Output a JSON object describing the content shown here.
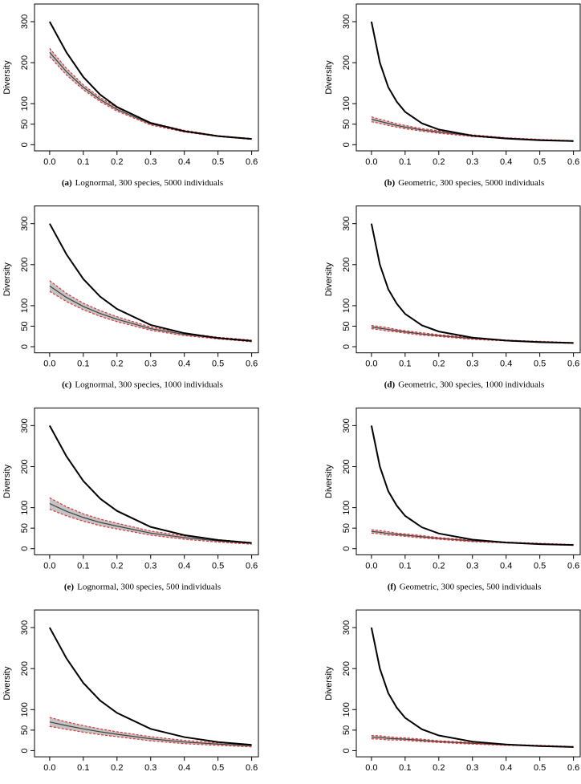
{
  "chart_data": [
    {
      "type": "line",
      "ylabel": "Diversity",
      "caption": {
        "label": "(a)",
        "text": "Lognormal, 300 species, 5000 individuals"
      },
      "x": [
        0,
        0.05,
        0.1,
        0.15,
        0.2,
        0.3,
        0.4,
        0.5,
        0.6
      ],
      "series": [
        {
          "color": "#000000",
          "values": [
            300,
            225,
            165,
            122,
            92,
            53,
            33,
            21,
            14
          ]
        },
        {
          "color": "#e03030",
          "dash": true,
          "values": [
            235,
            186,
            146,
            115,
            90,
            54,
            35,
            22,
            15
          ]
        },
        {
          "color": "#e03030",
          "dash": true,
          "values": [
            215,
            170,
            134,
            105,
            82,
            48,
            31,
            20,
            13
          ]
        },
        {
          "color": "#404040",
          "values": [
            225,
            178,
            140,
            110,
            86,
            51,
            33,
            21,
            14
          ]
        }
      ],
      "xlim": [
        -0.045,
        0.62
      ],
      "ylim": [
        -15,
        343
      ],
      "xticks": [
        {
          "value": 0,
          "label": "0.0"
        },
        0.1,
        0.2,
        0.3,
        0.4,
        0.5,
        0.6
      ],
      "yticks": [
        0,
        50,
        100,
        200,
        300
      ]
    },
    {
      "type": "line",
      "ylabel": "Diversity",
      "caption": {
        "label": "(b)",
        "text": "Geometric, 300 species, 5000 individuals"
      },
      "x": [
        0,
        0.025,
        0.05,
        0.075,
        0.1,
        0.15,
        0.2,
        0.3,
        0.4,
        0.5,
        0.6
      ],
      "series": [
        {
          "color": "#000000",
          "values": [
            300,
            200,
            140,
            105,
            80,
            52,
            37,
            22,
            15,
            11,
            9
          ]
        },
        {
          "color": "#e03030",
          "dash": true,
          "values": [
            68,
            62,
            57,
            51,
            47,
            39,
            34,
            24,
            17,
            13,
            10
          ]
        },
        {
          "color": "#e03030",
          "dash": true,
          "values": [
            56,
            52,
            47,
            43,
            39,
            33,
            28,
            20,
            15,
            11,
            8
          ]
        },
        {
          "color": "#404040",
          "values": [
            62,
            57,
            52,
            47,
            43,
            36,
            31,
            22,
            16,
            12,
            9
          ]
        }
      ],
      "xlim": [
        -0.045,
        0.62
      ],
      "ylim": [
        -15,
        343
      ],
      "xticks": [
        {
          "value": 0,
          "label": "0.0"
        },
        0.1,
        0.2,
        0.3,
        0.4,
        0.5,
        0.6
      ],
      "yticks": [
        0,
        50,
        100,
        200,
        300
      ]
    },
    {
      "type": "line",
      "ylabel": "Diversity",
      "caption": {
        "label": "(c)",
        "text": "Lognormal, 300 species, 1000 individuals"
      },
      "x": [
        0,
        0.05,
        0.1,
        0.15,
        0.2,
        0.3,
        0.4,
        0.5,
        0.6
      ],
      "series": [
        {
          "color": "#000000",
          "values": [
            300,
            225,
            165,
            122,
            92,
            53,
            33,
            21,
            14
          ]
        },
        {
          "color": "#e03030",
          "dash": true,
          "values": [
            161,
            130,
            106,
            88,
            73,
            48,
            33,
            23,
            16
          ]
        },
        {
          "color": "#e03030",
          "dash": true,
          "values": [
            135,
            110,
            90,
            74,
            61,
            40,
            27,
            19,
            12
          ]
        },
        {
          "color": "#404040",
          "values": [
            148,
            120,
            98,
            81,
            67,
            44,
            30,
            21,
            14
          ]
        }
      ],
      "xlim": [
        -0.045,
        0.62
      ],
      "ylim": [
        -15,
        343
      ],
      "xticks": [
        {
          "value": 0,
          "label": "0.0"
        },
        0.1,
        0.2,
        0.3,
        0.4,
        0.5,
        0.6
      ],
      "yticks": [
        0,
        50,
        100,
        200,
        300
      ]
    },
    {
      "type": "line",
      "ylabel": "Diversity",
      "caption": {
        "label": "(d)",
        "text": "Geometric, 300 species, 1000 individuals"
      },
      "x": [
        0,
        0.025,
        0.05,
        0.075,
        0.1,
        0.15,
        0.2,
        0.3,
        0.4,
        0.5,
        0.6
      ],
      "series": [
        {
          "color": "#000000",
          "values": [
            300,
            200,
            140,
            105,
            80,
            52,
            37,
            22,
            15,
            11,
            9
          ]
        },
        {
          "color": "#e03030",
          "dash": true,
          "values": [
            52,
            49,
            46,
            42,
            39,
            34,
            29,
            22,
            16,
            13,
            10
          ]
        },
        {
          "color": "#e03030",
          "dash": true,
          "values": [
            44,
            41,
            38,
            36,
            33,
            28,
            25,
            18,
            14,
            11,
            8
          ]
        },
        {
          "color": "#404040",
          "values": [
            48,
            45,
            42,
            39,
            36,
            31,
            27,
            20,
            15,
            12,
            9
          ]
        }
      ],
      "xlim": [
        -0.045,
        0.62
      ],
      "ylim": [
        -15,
        343
      ],
      "xticks": [
        {
          "value": 0,
          "label": "0.0"
        },
        0.1,
        0.2,
        0.3,
        0.4,
        0.5,
        0.6
      ],
      "yticks": [
        0,
        50,
        100,
        200,
        300
      ]
    },
    {
      "type": "line",
      "ylabel": "Diversity",
      "caption": {
        "label": "(e)",
        "text": "Lognormal, 300 species, 500 individuals"
      },
      "x": [
        0,
        0.05,
        0.1,
        0.15,
        0.2,
        0.3,
        0.4,
        0.5,
        0.6
      ],
      "series": [
        {
          "color": "#000000",
          "values": [
            300,
            225,
            165,
            122,
            92,
            53,
            33,
            21,
            14
          ]
        },
        {
          "color": "#e03030",
          "dash": true,
          "values": [
            124,
            102,
            85,
            72,
            62,
            43,
            31,
            22,
            15
          ]
        },
        {
          "color": "#e03030",
          "dash": true,
          "values": [
            96,
            80,
            67,
            56,
            48,
            33,
            23,
            16,
            11
          ]
        },
        {
          "color": "#404040",
          "values": [
            110,
            91,
            76,
            64,
            55,
            38,
            27,
            19,
            13
          ]
        }
      ],
      "xlim": [
        -0.045,
        0.62
      ],
      "ylim": [
        -15,
        343
      ],
      "xticks": [
        {
          "value": 0,
          "label": "0.0"
        },
        0.1,
        0.2,
        0.3,
        0.4,
        0.5,
        0.6
      ],
      "yticks": [
        0,
        50,
        100,
        200,
        300
      ]
    },
    {
      "type": "line",
      "ylabel": "Diversity",
      "caption": {
        "label": "(f)",
        "text": "Geometric, 300 species, 500 individuals"
      },
      "x": [
        0,
        0.025,
        0.05,
        0.075,
        0.1,
        0.15,
        0.2,
        0.3,
        0.4,
        0.5,
        0.6
      ],
      "series": [
        {
          "color": "#000000",
          "values": [
            300,
            200,
            140,
            105,
            80,
            52,
            37,
            22,
            15,
            11,
            9
          ]
        },
        {
          "color": "#e03030",
          "dash": true,
          "values": [
            46,
            44,
            41,
            38,
            36,
            32,
            27,
            21,
            16,
            13,
            10
          ]
        },
        {
          "color": "#e03030",
          "dash": true,
          "values": [
            38,
            36,
            33,
            32,
            30,
            26,
            23,
            17,
            14,
            11,
            8
          ]
        },
        {
          "color": "#404040",
          "values": [
            42,
            40,
            37,
            35,
            33,
            29,
            25,
            19,
            15,
            12,
            9
          ]
        }
      ],
      "xlim": [
        -0.045,
        0.62
      ],
      "ylim": [
        -15,
        343
      ],
      "xticks": [
        {
          "value": 0,
          "label": "0.0"
        },
        0.1,
        0.2,
        0.3,
        0.4,
        0.5,
        0.6
      ],
      "yticks": [
        0,
        50,
        100,
        200,
        300
      ]
    },
    {
      "type": "line",
      "ylabel": "Diversity",
      "x": [
        0,
        0.05,
        0.1,
        0.15,
        0.2,
        0.3,
        0.4,
        0.5,
        0.6
      ],
      "series": [
        {
          "color": "#000000",
          "values": [
            300,
            225,
            165,
            122,
            92,
            53,
            33,
            21,
            14
          ]
        },
        {
          "color": "#e03030",
          "dash": true,
          "values": [
            81,
            70,
            61,
            53,
            46,
            34,
            25,
            19,
            15
          ]
        },
        {
          "color": "#e03030",
          "dash": true,
          "values": [
            59,
            52,
            45,
            39,
            34,
            24,
            17,
            13,
            9
          ]
        },
        {
          "color": "#404040",
          "values": [
            70,
            61,
            53,
            46,
            40,
            29,
            21,
            16,
            12
          ]
        }
      ],
      "xlim": [
        -0.045,
        0.62
      ],
      "ylim": [
        -15,
        343
      ],
      "xticks": [
        {
          "value": 0,
          "label": "0.0"
        },
        0.1,
        0.2,
        0.3,
        0.4,
        0.5,
        0.6
      ],
      "yticks": [
        0,
        50,
        100,
        200,
        300
      ]
    },
    {
      "type": "line",
      "ylabel": "Diversity",
      "x": [
        0,
        0.025,
        0.05,
        0.075,
        0.1,
        0.15,
        0.2,
        0.3,
        0.4,
        0.5,
        0.6
      ],
      "series": [
        {
          "color": "#000000",
          "values": [
            300,
            200,
            140,
            105,
            80,
            52,
            37,
            22,
            15,
            11,
            9
          ]
        },
        {
          "color": "#e03030",
          "dash": true,
          "values": [
            37,
            36,
            34,
            32,
            31,
            28,
            24,
            20,
            15,
            13,
            10
          ]
        },
        {
          "color": "#e03030",
          "dash": true,
          "values": [
            29,
            28,
            26,
            26,
            25,
            22,
            20,
            16,
            13,
            11,
            8
          ]
        },
        {
          "color": "#404040",
          "values": [
            33,
            32,
            30,
            29,
            28,
            25,
            22,
            18,
            14,
            12,
            9
          ]
        }
      ],
      "xlim": [
        -0.045,
        0.62
      ],
      "ylim": [
        -15,
        343
      ],
      "xticks": [
        {
          "value": 0,
          "label": "0.0"
        },
        0.1,
        0.2,
        0.3,
        0.4,
        0.5,
        0.6
      ],
      "yticks": [
        0,
        50,
        100,
        200,
        300
      ]
    }
  ]
}
